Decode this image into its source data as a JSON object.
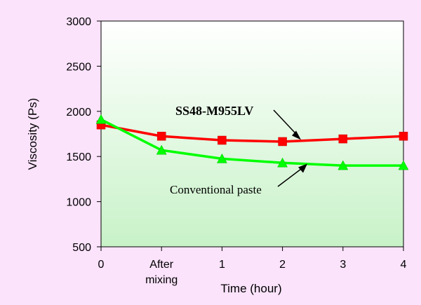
{
  "chart_data": {
    "type": "line",
    "categories": [
      "0",
      "After mixing",
      "1",
      "2",
      "3",
      "4"
    ],
    "category_label_lines": [
      [
        "0"
      ],
      [
        "After",
        "mixing"
      ],
      [
        "1"
      ],
      [
        "2"
      ],
      [
        "3"
      ],
      [
        "4"
      ]
    ],
    "xlabel": "Time (hour)",
    "ylabel": "Viscosity (Ps)",
    "title": "",
    "ylim": [
      500,
      3000
    ],
    "yticks": [
      500,
      1000,
      1500,
      2000,
      2500,
      3000
    ],
    "grid": false,
    "series": [
      {
        "name": "SS48-M955LV",
        "values": [
          1850,
          1725,
          1680,
          1665,
          1695,
          1725
        ],
        "color": "#ff0000",
        "marker": "square"
      },
      {
        "name": "Conventional paste",
        "values": [
          1910,
          1570,
          1475,
          1430,
          1400,
          1400
        ],
        "color": "#00ff00",
        "marker": "triangle"
      }
    ],
    "colors": {
      "page_background": "#fbe3fb",
      "plot_top": "#ffffff",
      "plot_bottom": "#c8f2c8"
    }
  }
}
